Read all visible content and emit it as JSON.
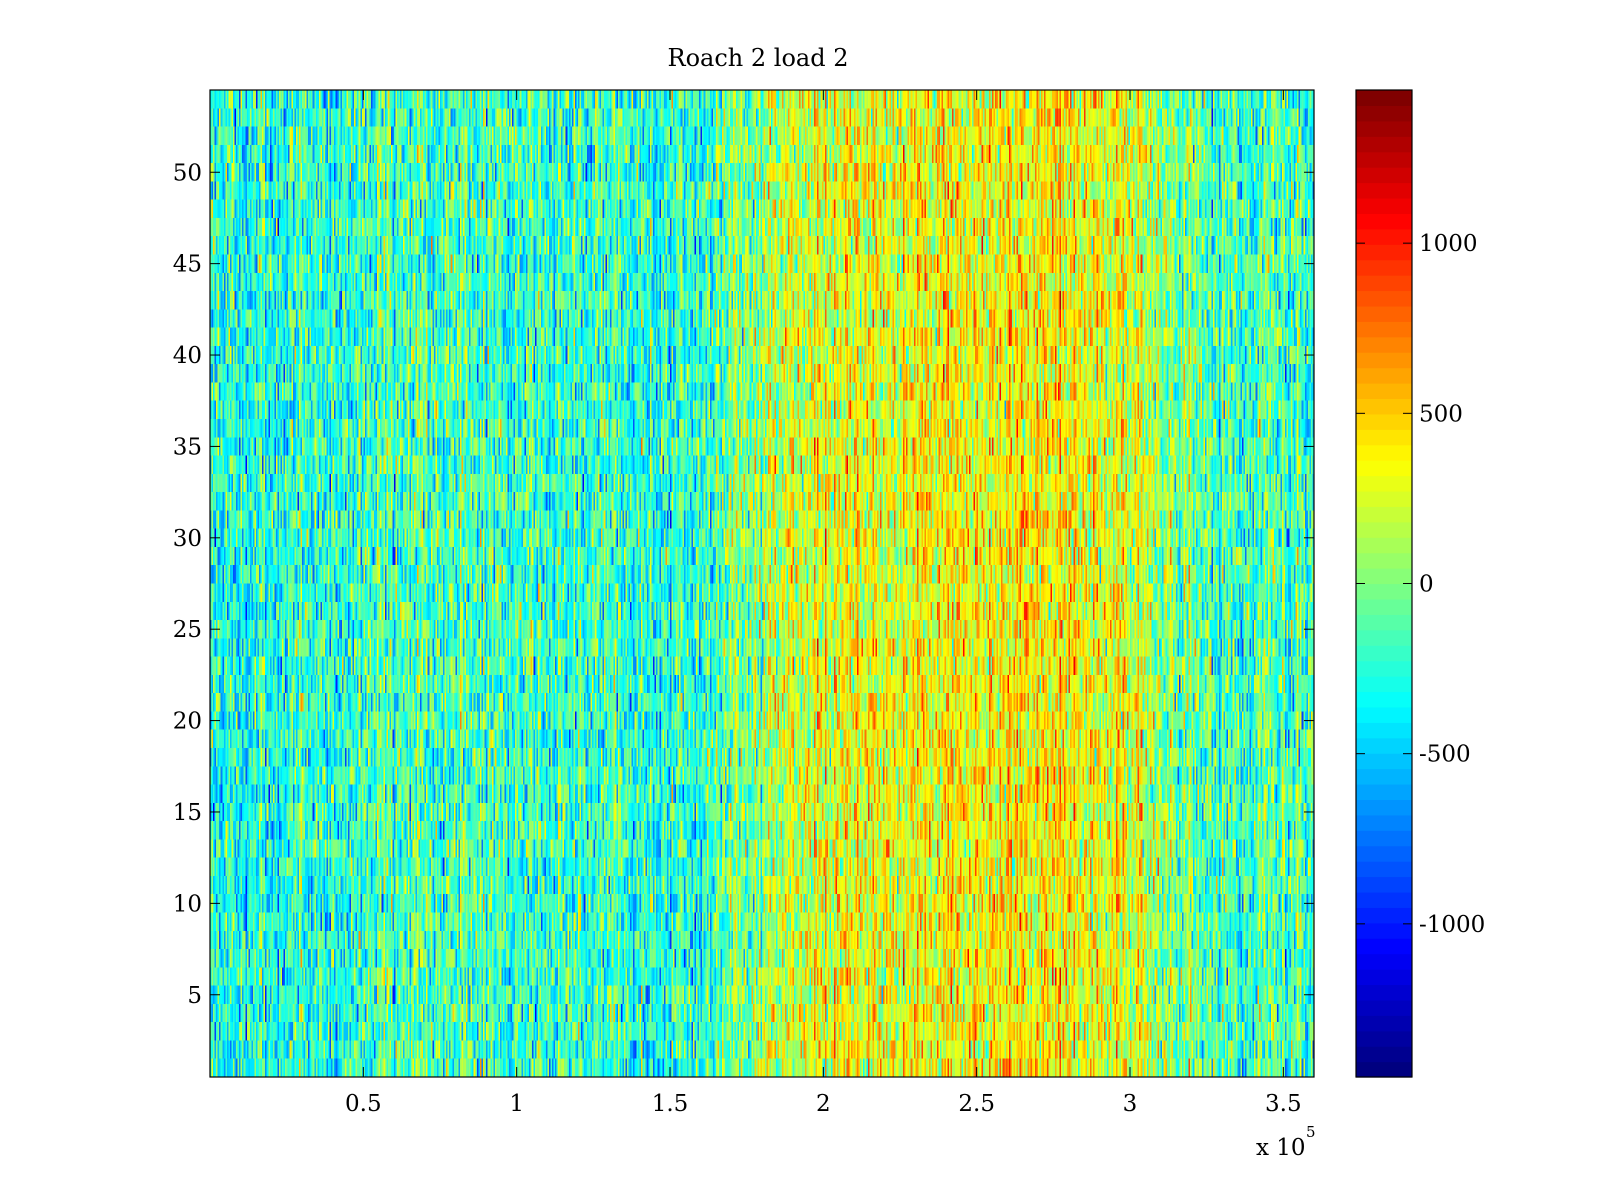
{
  "chart_data": {
    "type": "heatmap",
    "title": "Roach 2 load 2",
    "xlabel": "",
    "ylabel": "",
    "x_multiplier_label": "x 10",
    "x_multiplier_exponent": "5",
    "xlim": [
      0,
      3.6
    ],
    "ylim": [
      0.5,
      54.5
    ],
    "x_ticks": [
      0.5,
      1,
      1.5,
      2,
      2.5,
      3,
      3.5
    ],
    "x_tick_labels": [
      "0.5",
      "1",
      "1.5",
      "2",
      "2.5",
      "3",
      "3.5"
    ],
    "y_ticks": [
      5,
      10,
      15,
      20,
      25,
      30,
      35,
      40,
      45,
      50
    ],
    "y_tick_labels": [
      "5",
      "10",
      "15",
      "20",
      "25",
      "30",
      "35",
      "40",
      "45",
      "50"
    ],
    "rows": 54,
    "colormap": "jet",
    "colorbar": {
      "clim": [
        -1450,
        1450
      ],
      "ticks": [
        -1000,
        -500,
        0,
        500,
        1000
      ],
      "tick_labels": [
        "-1000",
        "-500",
        "0",
        "500",
        "1000"
      ],
      "levels": 64
    },
    "column_mean_profile": {
      "x": [
        0,
        0.3,
        0.6,
        0.9,
        1.2,
        1.5,
        1.65,
        1.9,
        2.2,
        2.5,
        2.8,
        3.0,
        3.1,
        3.3,
        3.6
      ],
      "value": [
        -300,
        -250,
        -200,
        -150,
        -220,
        -300,
        -150,
        250,
        300,
        330,
        380,
        250,
        80,
        -150,
        -200
      ]
    },
    "noise_std": 250
  }
}
